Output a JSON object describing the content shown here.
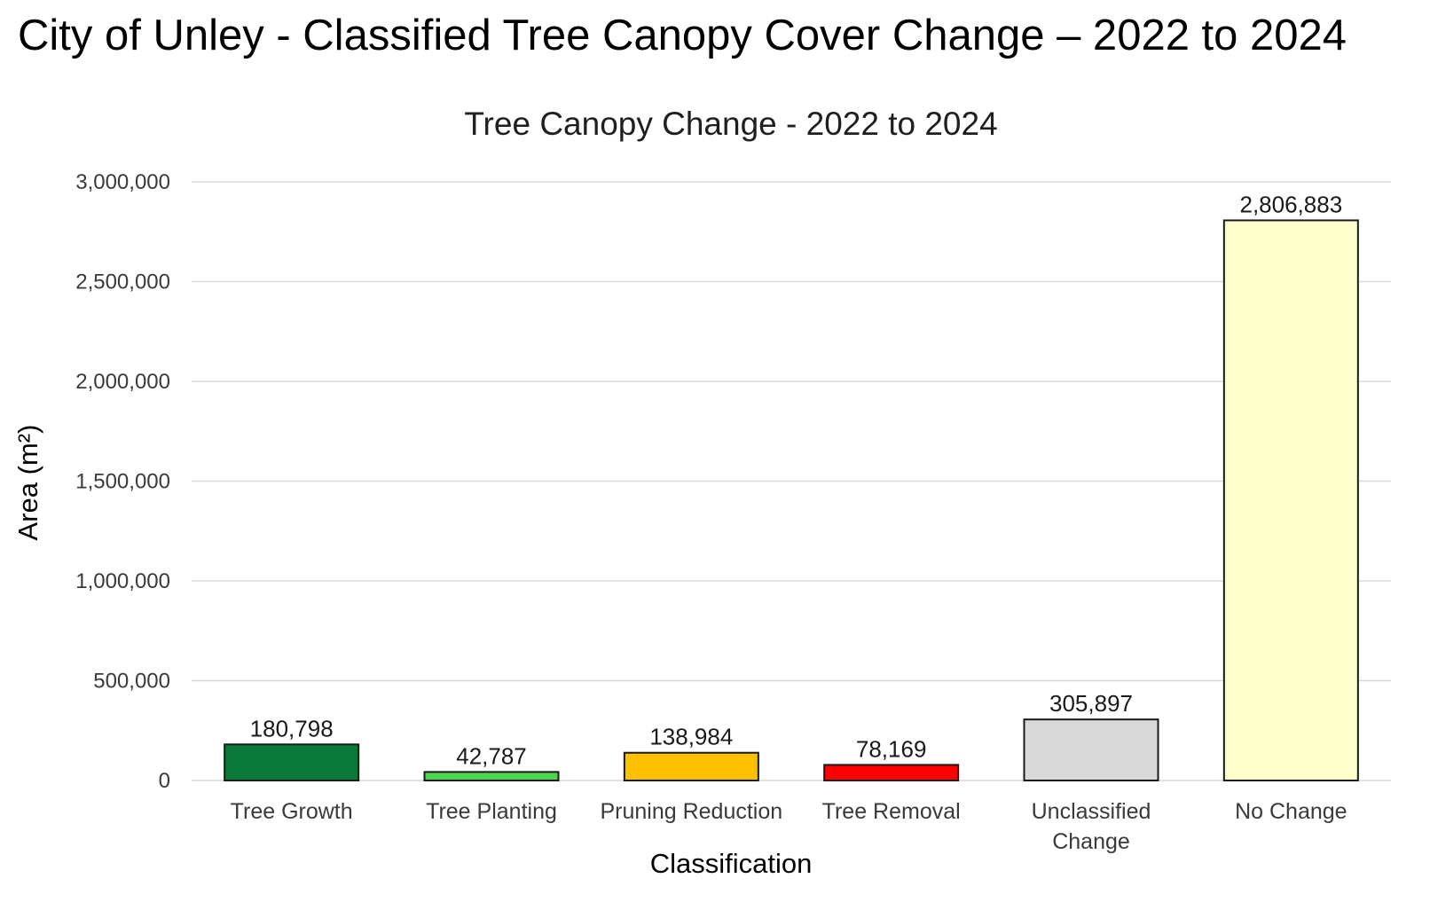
{
  "page_title": "City of Unley - Classified Tree Canopy Cover Change – 2022 to 2024",
  "chart_data": {
    "type": "bar",
    "title": "Tree Canopy Change - 2022 to 2024",
    "xlabel": "Classification",
    "ylabel": "Area (m²)",
    "ylim": [
      0,
      3000000
    ],
    "yticks": [
      0,
      500000,
      1000000,
      1500000,
      2000000,
      2500000,
      3000000
    ],
    "ytick_labels": [
      "0",
      "500,000",
      "1,000,000",
      "1,500,000",
      "2,000,000",
      "2,500,000",
      "3,000,000"
    ],
    "grid": true,
    "legend": "none",
    "categories": [
      "Tree Growth",
      "Tree Planting",
      "Pruning Reduction",
      "Tree Removal",
      "Unclassified Change",
      "No Change"
    ],
    "values": [
      180798,
      42787,
      138984,
      78169,
      305897,
      2806883
    ],
    "value_labels": [
      "180,798",
      "42,787",
      "138,984",
      "78,169",
      "305,897",
      "2,806,883"
    ],
    "colors": [
      "#0a7a3a",
      "#4dd64d",
      "#ffc000",
      "#ff0000",
      "#d9d9d9",
      "#ffffcc"
    ]
  }
}
